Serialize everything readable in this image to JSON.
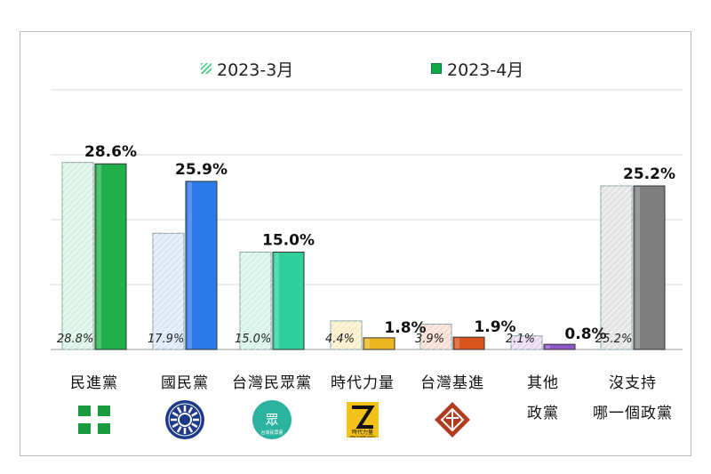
{
  "colors": {
    "2023-3": [
      "#d8f3e6",
      "#dce8f6",
      "#d4f3e9",
      "#fbefc9",
      "#f7ddd3",
      "#ead9f3",
      "#e4e4e4"
    ],
    "2023-4": [
      "#1fb04c",
      "#2d79ea",
      "#2ecf9a",
      "#ecb620",
      "#d9531c",
      "#8f59c9",
      "#7e7e7e"
    ],
    "legend_march": "#57d292",
    "legend_april": "#0fa84a"
  },
  "chart_data": {
    "type": "bar",
    "title": "",
    "xlabel": "",
    "ylabel": "",
    "ylim": [
      0,
      40
    ],
    "grid": true,
    "legend_position": "top",
    "categories": [
      "民進黨",
      "國民黨",
      "台灣民眾黨",
      "時代力量",
      "台灣基進",
      "其他政黨",
      "沒支持哪一個政黨"
    ],
    "series": [
      {
        "name": "2023-3月",
        "values": [
          28.8,
          17.9,
          15.0,
          4.4,
          3.9,
          2.1,
          25.2
        ],
        "labels": [
          "28.8%",
          "17.9%",
          "15.0%",
          "4.4%",
          "3.9%",
          "2.1%",
          "25.2%"
        ]
      },
      {
        "name": "2023-4月",
        "values": [
          28.6,
          25.9,
          15.0,
          1.8,
          1.9,
          0.8,
          25.2
        ],
        "labels": [
          "28.6%",
          "25.9%",
          "15.0%",
          "1.8%",
          "1.9%",
          "0.8%",
          "25.2%"
        ]
      }
    ]
  },
  "category_lines": [
    [
      "民進黨"
    ],
    [
      "國民黨"
    ],
    [
      "台灣民眾黨"
    ],
    [
      "時代力量"
    ],
    [
      "台灣基進"
    ],
    [
      "其他",
      "政黨"
    ],
    [
      "沒支持",
      "哪一個政黨"
    ]
  ],
  "logos": [
    {
      "name": "dpp-logo",
      "text": ""
    },
    {
      "name": "kmt-logo",
      "text": ""
    },
    {
      "name": "tpp-logo",
      "text": "眾",
      "subtext": "台灣民眾黨"
    },
    {
      "name": "npp-logo",
      "text": "時代力量",
      "subtext": "NEW POWER PARTY"
    },
    {
      "name": "tsp-logo",
      "text": ""
    }
  ]
}
